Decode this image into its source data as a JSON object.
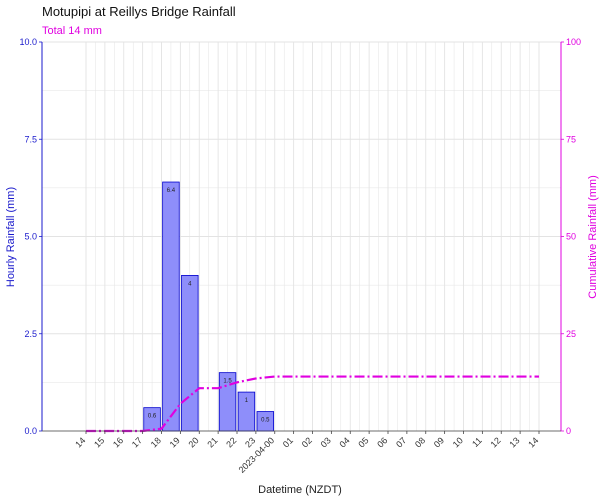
{
  "chart_data": {
    "type": "bar",
    "title": "Motupipi at Reillys Bridge Rainfall",
    "subtitle": "Total 14 mm",
    "xlabel": "Datetime (NZDT)",
    "ylabel": "Hourly Rainfall (mm)",
    "y2label": "Cumulative Rainfall (mm)",
    "ylim": [
      0,
      10
    ],
    "y2lim": [
      0,
      100
    ],
    "yticks": [
      "0.0",
      "2.5",
      "5.0",
      "7.5",
      "10.0"
    ],
    "y2ticks": [
      "0",
      "25",
      "50",
      "75",
      "100"
    ],
    "grid": true,
    "categories": [
      "14",
      "15",
      "16",
      "17",
      "18",
      "19",
      "20",
      "21",
      "22",
      "23",
      "2023-04-00",
      "01",
      "02",
      "03",
      "04",
      "05",
      "06",
      "07",
      "08",
      "09",
      "10",
      "11",
      "12",
      "13",
      "14"
    ],
    "series": [
      {
        "values": [
          0,
          0,
          0,
          0,
          0.6,
          6.4,
          4,
          0,
          1.5,
          1,
          0.5,
          0,
          0,
          0,
          0,
          0,
          0,
          0,
          0,
          0,
          0,
          0,
          0,
          0,
          0
        ],
        "labels": [
          "",
          "",
          "",
          "",
          "0.6",
          "6.4",
          "4",
          "",
          "1.5",
          "1",
          "0.5",
          "",
          "",
          "",
          "",
          "",
          "",
          "",
          "",
          "",
          "",
          "",
          "",
          "",
          ""
        ]
      },
      {
        "values": [
          0,
          0,
          0,
          0,
          0.6,
          7.0,
          11.0,
          11.0,
          12.5,
          13.5,
          14.0,
          14,
          14,
          14,
          14,
          14,
          14,
          14,
          14,
          14,
          14,
          14,
          14,
          14,
          14
        ]
      }
    ],
    "colors": {
      "bar_fill": "#8e8efa",
      "bar_stroke": "#0000cc",
      "left_axis": "#1a1acc",
      "right_axis": "#e000e0",
      "cumulative_line": "#e000e0",
      "grid": "#e3e3e3"
    }
  }
}
